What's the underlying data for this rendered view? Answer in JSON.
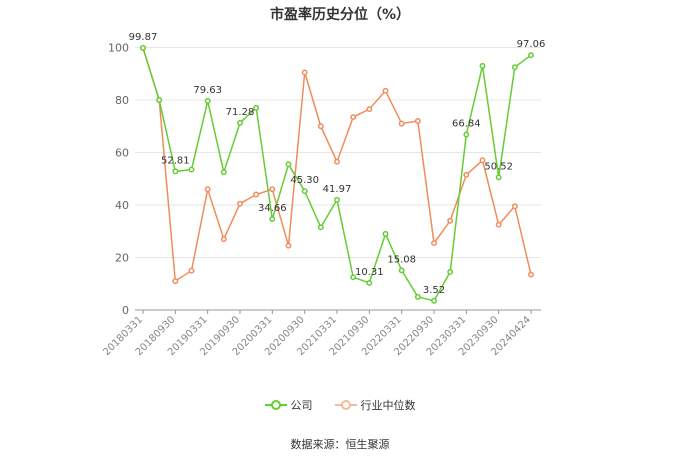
{
  "chart_data": {
    "type": "line",
    "title": "市盈率历史分位（%）",
    "source": "数据来源：恒生聚源",
    "ylim": [
      0,
      100
    ],
    "yticks": [
      0,
      20,
      40,
      60,
      80,
      100
    ],
    "xticklabels": [
      "20180331",
      "20180930",
      "20190331",
      "20190930",
      "20200331",
      "20200930",
      "20210331",
      "20210930",
      "20220331",
      "20220930",
      "20230331",
      "20230930",
      "20240424"
    ],
    "x": [
      "20180331",
      "20180630",
      "20180930",
      "20181231",
      "20190331",
      "20190630",
      "20190930",
      "20191231",
      "20200331",
      "20200630",
      "20200930",
      "20201231",
      "20210331",
      "20210630",
      "20210930",
      "20211231",
      "20220331",
      "20220630",
      "20220930",
      "20221231",
      "20230331",
      "20230630",
      "20230930",
      "20231231",
      "20240424"
    ],
    "grid": true,
    "legend_position": "bottom",
    "series": [
      {
        "name": "公司",
        "color": "#66cc33",
        "values": [
          99.87,
          80,
          52.81,
          53.5,
          79.63,
          52.5,
          71.28,
          77,
          34.66,
          55.5,
          45.3,
          31.5,
          41.97,
          12.5,
          10.31,
          29,
          15.08,
          5,
          3.52,
          14.5,
          66.84,
          93,
          50.52,
          92.5,
          97.06
        ],
        "labels": [
          "99.87",
          "",
          "52.81",
          "",
          "79.63",
          "",
          "71.28",
          "",
          "34.66",
          "",
          "45.30",
          "",
          "41.97",
          "",
          "10.31",
          "",
          "15.08",
          "",
          "3.52",
          "",
          "66.84",
          "",
          "50.52",
          "",
          "97.06"
        ]
      },
      {
        "name": "行业中位数",
        "color": "#f08c5c",
        "values": [
          99.8,
          80,
          11,
          15,
          46,
          27,
          40.5,
          44,
          46,
          24.5,
          90.5,
          70,
          56.5,
          73.5,
          76.5,
          83.5,
          71,
          72,
          25.5,
          34,
          51.5,
          57,
          32.5,
          39.5,
          13.5
        ],
        "labels": []
      }
    ]
  }
}
